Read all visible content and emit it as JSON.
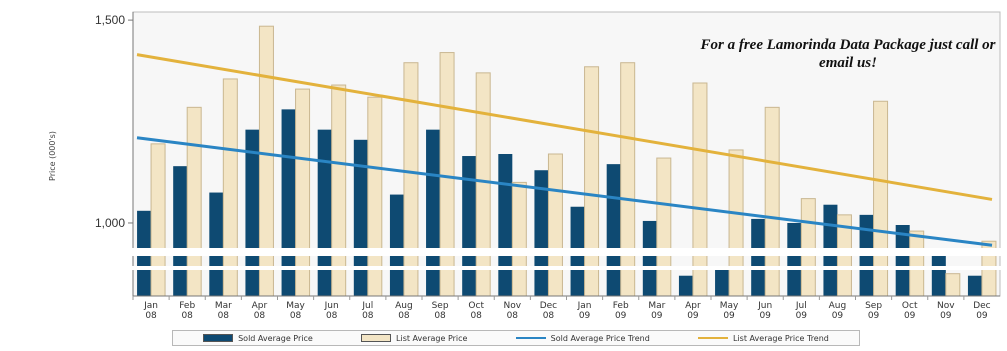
{
  "chart_data": {
    "type": "bar",
    "ylabel": "Price (000's)",
    "yticks": [
      "1,500",
      "1,000"
    ],
    "ylim": [
      820,
      1520
    ],
    "categories": [
      [
        "Jan",
        "08"
      ],
      [
        "Feb",
        "08"
      ],
      [
        "Mar",
        "08"
      ],
      [
        "Apr",
        "08"
      ],
      [
        "May",
        "08"
      ],
      [
        "Jun",
        "08"
      ],
      [
        "Jul",
        "08"
      ],
      [
        "Aug",
        "08"
      ],
      [
        "Sep",
        "08"
      ],
      [
        "Oct",
        "08"
      ],
      [
        "Nov",
        "08"
      ],
      [
        "Dec",
        "08"
      ],
      [
        "Jan",
        "09"
      ],
      [
        "Feb",
        "09"
      ],
      [
        "Mar",
        "09"
      ],
      [
        "Apr",
        "09"
      ],
      [
        "May",
        "09"
      ],
      [
        "Jun",
        "09"
      ],
      [
        "Jul",
        "09"
      ],
      [
        "Aug",
        "09"
      ],
      [
        "Sep",
        "09"
      ],
      [
        "Oct",
        "09"
      ],
      [
        "Nov",
        "09"
      ],
      [
        "Dec",
        "09"
      ]
    ],
    "series": [
      {
        "name": "Sold Average Price",
        "values": [
          1030,
          1140,
          1075,
          1230,
          1280,
          1230,
          1205,
          1070,
          1230,
          1165,
          1170,
          1130,
          1040,
          1145,
          1005,
          870,
          885,
          1010,
          1000,
          1045,
          1020,
          995,
          935,
          870
        ]
      },
      {
        "name": "List Average Price",
        "values": [
          1195,
          1285,
          1355,
          1485,
          1330,
          1340,
          1310,
          1395,
          1420,
          1370,
          1100,
          1170,
          1385,
          1395,
          1160,
          1345,
          1180,
          1285,
          1060,
          1020,
          1300,
          980,
          875,
          955
        ]
      }
    ],
    "trends": [
      {
        "name": "Sold Average Price Trend",
        "start": 1210,
        "end": 945
      },
      {
        "name": "List Average Price Trend",
        "start": 1415,
        "end": 1058
      }
    ],
    "colors": {
      "sold": "#0e4a72",
      "list": "#f3e5c5",
      "list_stroke": "#c9b791",
      "sold_trend": "#2a85c4",
      "list_trend": "#e3b23c"
    },
    "title": "",
    "annotation": "For a free Lamorinda Data Package just call or email us!",
    "grid": false,
    "legend": "bottom"
  }
}
